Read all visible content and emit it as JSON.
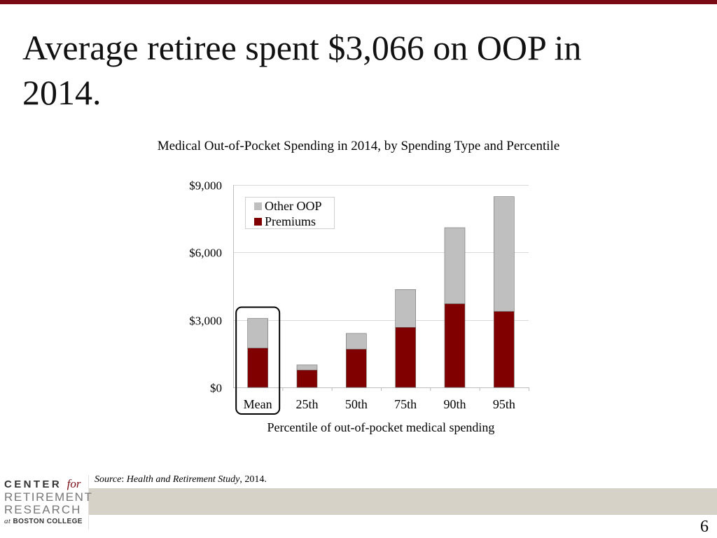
{
  "slide": {
    "title": "Average retiree spent $3,066 on OOP in 2014.",
    "page_number": "6"
  },
  "colors": {
    "accent": "#7a0b14",
    "premiums": "#800000",
    "other_oop": "#bfbfbf",
    "footer_band": "#d6d2c8"
  },
  "source": {
    "label": "Source",
    "separator": ":",
    "study": "Health and Retirement Study",
    "suffix": ", 2014."
  },
  "logo": {
    "line1": "CENTER",
    "line1_for": "for",
    "line2": "RETIREMENT",
    "line3": "RESEARCH",
    "line4_at": "at",
    "line4": "BOSTON COLLEGE"
  },
  "chart_data": {
    "type": "bar",
    "stacked": true,
    "title": "Medical Out-of-Pocket Spending in 2014, by Spending Type and Percentile",
    "xlabel": "Percentile of out-of-pocket medical spending",
    "ylabel": "",
    "ylim": [
      0,
      9000
    ],
    "yticks": [
      0,
      3000,
      6000,
      9000
    ],
    "ytick_labels": [
      "$0",
      "$3,000",
      "$6,000",
      "$9,000"
    ],
    "grid": true,
    "legend_position": "top-left",
    "categories": [
      "Mean",
      "25th",
      "50th",
      "75th",
      "90th",
      "95th"
    ],
    "highlighted_category": "Mean",
    "series": [
      {
        "name": "Premiums",
        "values": [
          1750,
          770,
          1700,
          2670,
          3720,
          3380
        ]
      },
      {
        "name": "Other OOP",
        "values": [
          1316,
          230,
          700,
          1680,
          3380,
          5100
        ]
      }
    ]
  }
}
